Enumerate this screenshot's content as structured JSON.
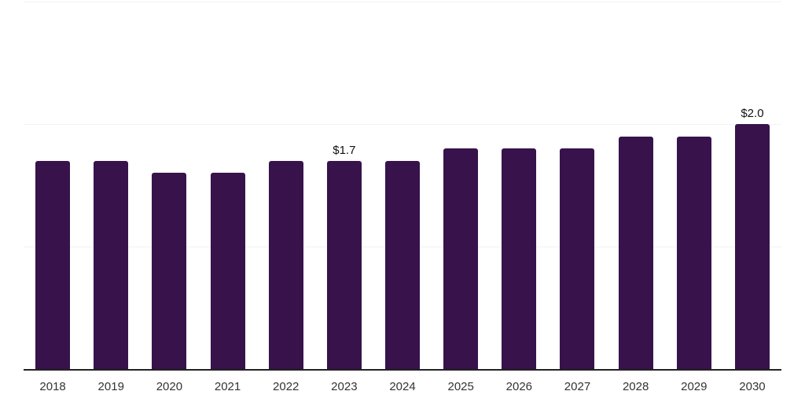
{
  "chart_data": {
    "type": "bar",
    "categories": [
      "2018",
      "2019",
      "2020",
      "2021",
      "2022",
      "2023",
      "2024",
      "2025",
      "2026",
      "2027",
      "2028",
      "2029",
      "2030"
    ],
    "values": [
      1.7,
      1.7,
      1.6,
      1.6,
      1.7,
      1.7,
      1.7,
      1.8,
      1.8,
      1.8,
      1.9,
      1.9,
      2.0
    ],
    "data_labels": [
      "",
      "",
      "",
      "",
      "",
      "$1.7",
      "",
      "",
      "",
      "",
      "",
      "",
      "$2.0"
    ],
    "title": "",
    "xlabel": "",
    "ylabel": "",
    "ylim": [
      0,
      3
    ],
    "gridline_values": [
      1,
      2,
      3
    ],
    "grid": true,
    "legend": false,
    "bar_color": "#37124B",
    "grid_color": "#F2F2F2",
    "axis_color": "#222222",
    "tick_label_color": "#333333",
    "data_label_color": "#111111"
  }
}
